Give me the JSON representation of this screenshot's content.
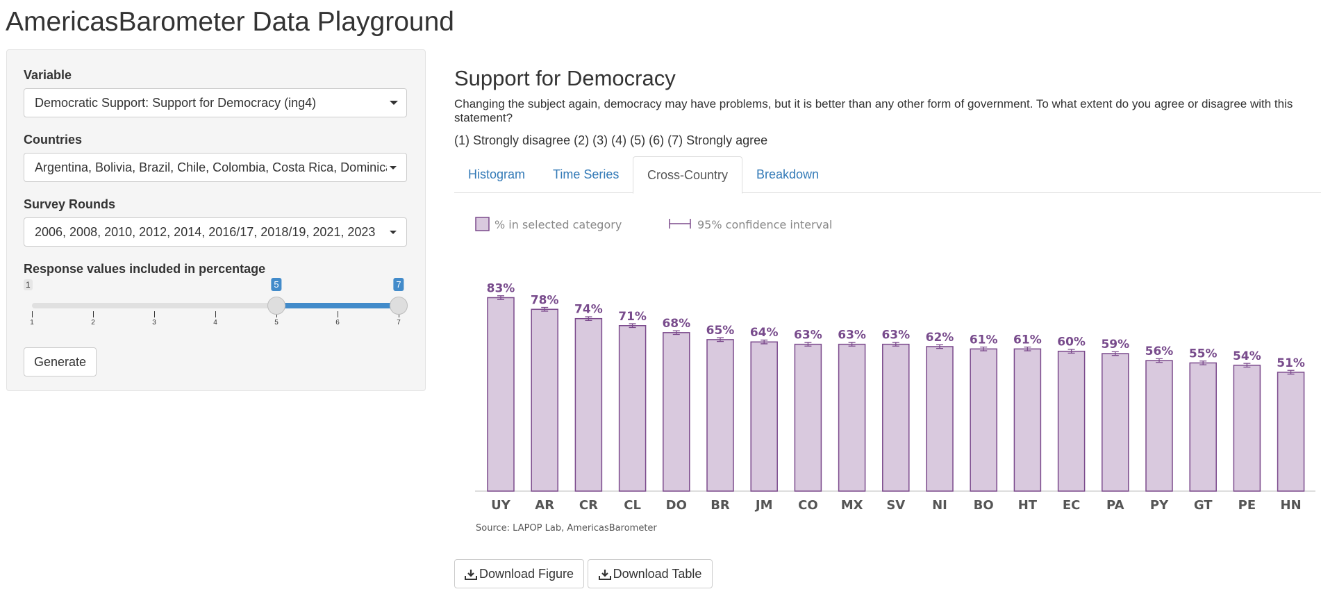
{
  "app": {
    "title": "AmericasBarometer Data Playground"
  },
  "sidebar": {
    "variable": {
      "label": "Variable",
      "selected": "Democratic Support: Support for Democracy (ing4)"
    },
    "countries": {
      "label": "Countries",
      "selected": "Argentina, Bolivia, Brazil, Chile, Colombia, Costa Rica, Dominican Republic"
    },
    "rounds": {
      "label": "Survey Rounds",
      "selected": "2006, 2008, 2010, 2012, 2014, 2016/17, 2018/19, 2021, 2023"
    },
    "slider": {
      "label": "Response values included in percentage",
      "min": 1,
      "max": 7,
      "from": 5,
      "to": 7,
      "min_label": "1",
      "from_label": "5",
      "to_label": "7",
      "ticks": [
        "1",
        "2",
        "3",
        "4",
        "5",
        "6",
        "7"
      ]
    },
    "generate_label": "Generate"
  },
  "main": {
    "title": "Support for Democracy",
    "question": "Changing the subject again, democracy may have problems, but it is better than any other form of government. To what extent do you agree or disagree with this statement?",
    "scale": "(1) Strongly disagree (2) (3) (4) (5) (6) (7) Strongly agree",
    "tabs": [
      {
        "label": "Histogram",
        "active": false
      },
      {
        "label": "Time Series",
        "active": false
      },
      {
        "label": "Cross-Country",
        "active": true
      },
      {
        "label": "Breakdown",
        "active": false
      }
    ],
    "download_figure_label": "Download Figure",
    "download_table_label": "Download Table"
  },
  "colors": {
    "bar_fill": "#d9c9de",
    "bar_stroke": "#7b4a8c",
    "label": "#784b8c",
    "accent": "#428bca",
    "link": "#337ab7"
  },
  "chart_data": {
    "type": "bar",
    "categories": [
      "UY",
      "AR",
      "CR",
      "CL",
      "DO",
      "BR",
      "JM",
      "CO",
      "MX",
      "SV",
      "NI",
      "BO",
      "HT",
      "EC",
      "PA",
      "PY",
      "GT",
      "PE",
      "HN"
    ],
    "values": [
      83,
      78,
      74,
      71,
      68,
      65,
      64,
      63,
      63,
      63,
      62,
      61,
      61,
      60,
      59,
      56,
      55,
      54,
      51
    ],
    "value_labels": [
      "83%",
      "78%",
      "74%",
      "71%",
      "68%",
      "65%",
      "64%",
      "63%",
      "63%",
      "63%",
      "62%",
      "61%",
      "61%",
      "60%",
      "59%",
      "56%",
      "55%",
      "54%",
      "51%"
    ],
    "ci_half_width": 0.8,
    "legend": [
      "% in selected category",
      "95% confidence interval"
    ],
    "source": "Source: LAPOP Lab, AmericasBarometer",
    "ylim": [
      0,
      90
    ],
    "grid": false,
    "legend_position": "top-left"
  }
}
